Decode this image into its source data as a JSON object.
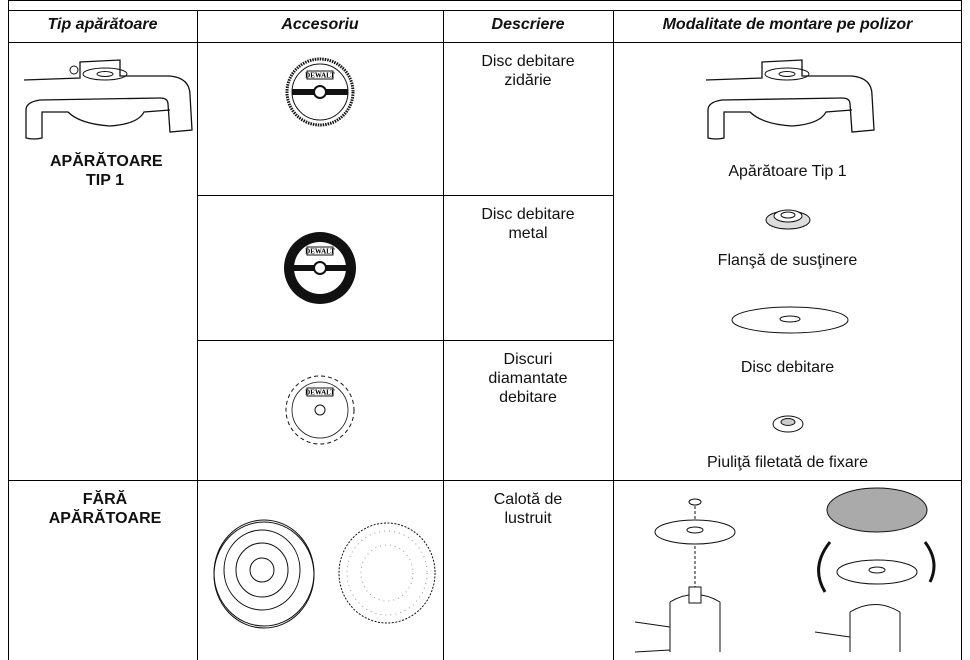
{
  "table": {
    "columns": [
      "Tip apărătoare",
      "Accesoriu",
      "Descriere",
      "Modalitate de montare pe polizor"
    ],
    "brand": "DEWALT",
    "rows": [
      {
        "guard": "APĂRĂTOARE TIP 1",
        "accessories": [
          {
            "description": "Disc debitare zidărie"
          },
          {
            "description": "Disc debitare metal"
          },
          {
            "description": "Discuri diamantate debitare"
          }
        ],
        "mounting": [
          "Apărătoare Tip 1",
          "Flanşă de susţinere",
          "Disc debitare",
          "Piuliţă filetată de fixare"
        ]
      },
      {
        "guard": "FĂRĂ APĂRĂTOARE",
        "accessories": [
          {
            "description": "Calotă de lustruit"
          }
        ]
      }
    ]
  }
}
